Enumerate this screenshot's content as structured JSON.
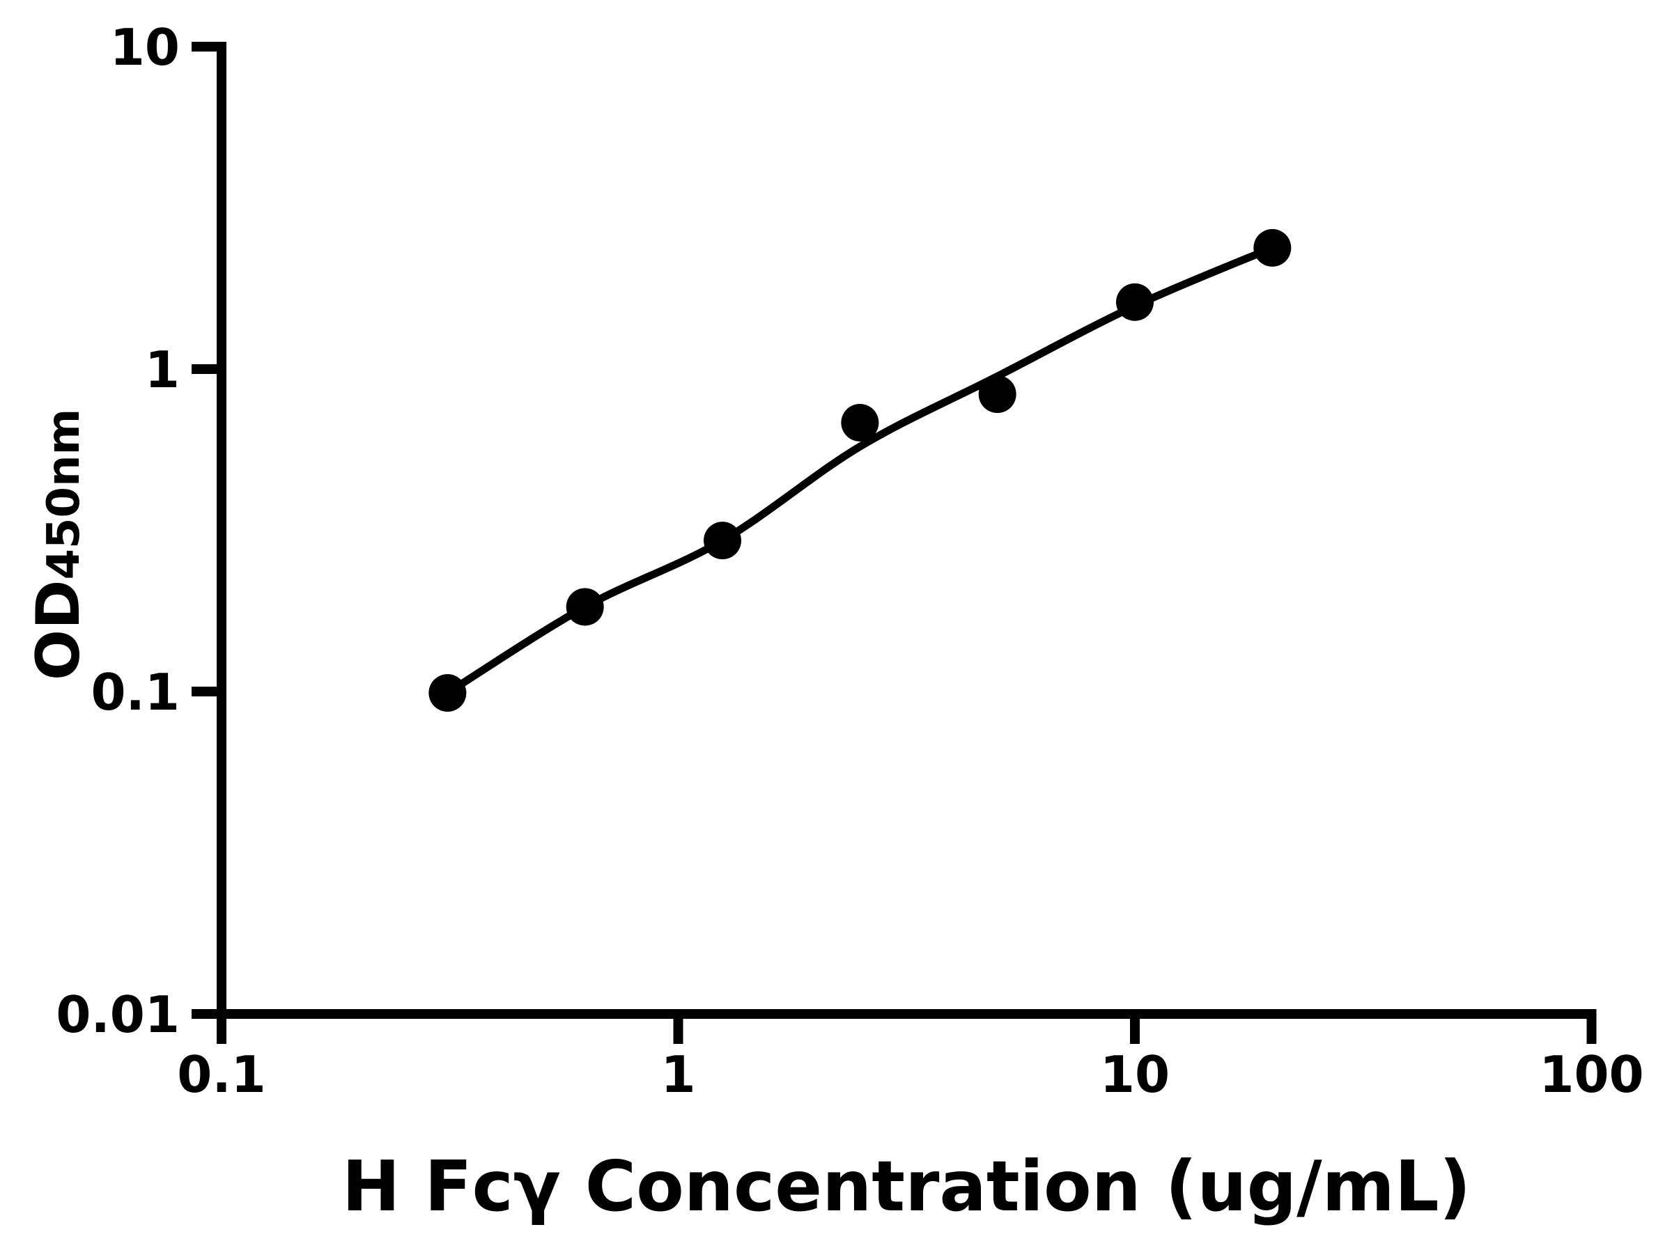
{
  "figure": {
    "background": "#ffffff",
    "ink_color": "#000000"
  },
  "chart_data": {
    "type": "scatter",
    "title": "",
    "xlabel": "H Fcγ Concentration (ug/mL)",
    "ylabel_main": "OD",
    "ylabel_sub": "450nm",
    "x_scale": "log",
    "y_scale": "log",
    "xlim": [
      0.1,
      100
    ],
    "ylim": [
      0.01,
      10
    ],
    "grid": false,
    "legend": false,
    "x_ticks": [
      {
        "value": 0.1,
        "label": "0.1"
      },
      {
        "value": 1,
        "label": "1"
      },
      {
        "value": 10,
        "label": "10"
      },
      {
        "value": 100,
        "label": "100"
      }
    ],
    "y_ticks": [
      {
        "value": 10,
        "label": "10"
      },
      {
        "value": 1,
        "label": "1"
      },
      {
        "value": 0.1,
        "label": "0.1"
      },
      {
        "value": 0.01,
        "label": "0.01"
      }
    ],
    "series": [
      {
        "name": "standard-points",
        "type": "scatter",
        "marker": "filled-circle",
        "color": "#000000",
        "x": [
          0.3125,
          0.625,
          1.25,
          2.5,
          5,
          10,
          20
        ],
        "y": [
          0.099,
          0.183,
          0.294,
          0.682,
          0.836,
          1.613,
          2.377
        ]
      },
      {
        "name": "fitted-curve",
        "type": "line",
        "color": "#000000",
        "x": [
          0.3125,
          0.625,
          1.25,
          2.5,
          5,
          10,
          20
        ],
        "y": [
          0.099,
          0.183,
          0.294,
          0.575,
          0.95,
          1.57,
          2.377
        ]
      }
    ]
  }
}
